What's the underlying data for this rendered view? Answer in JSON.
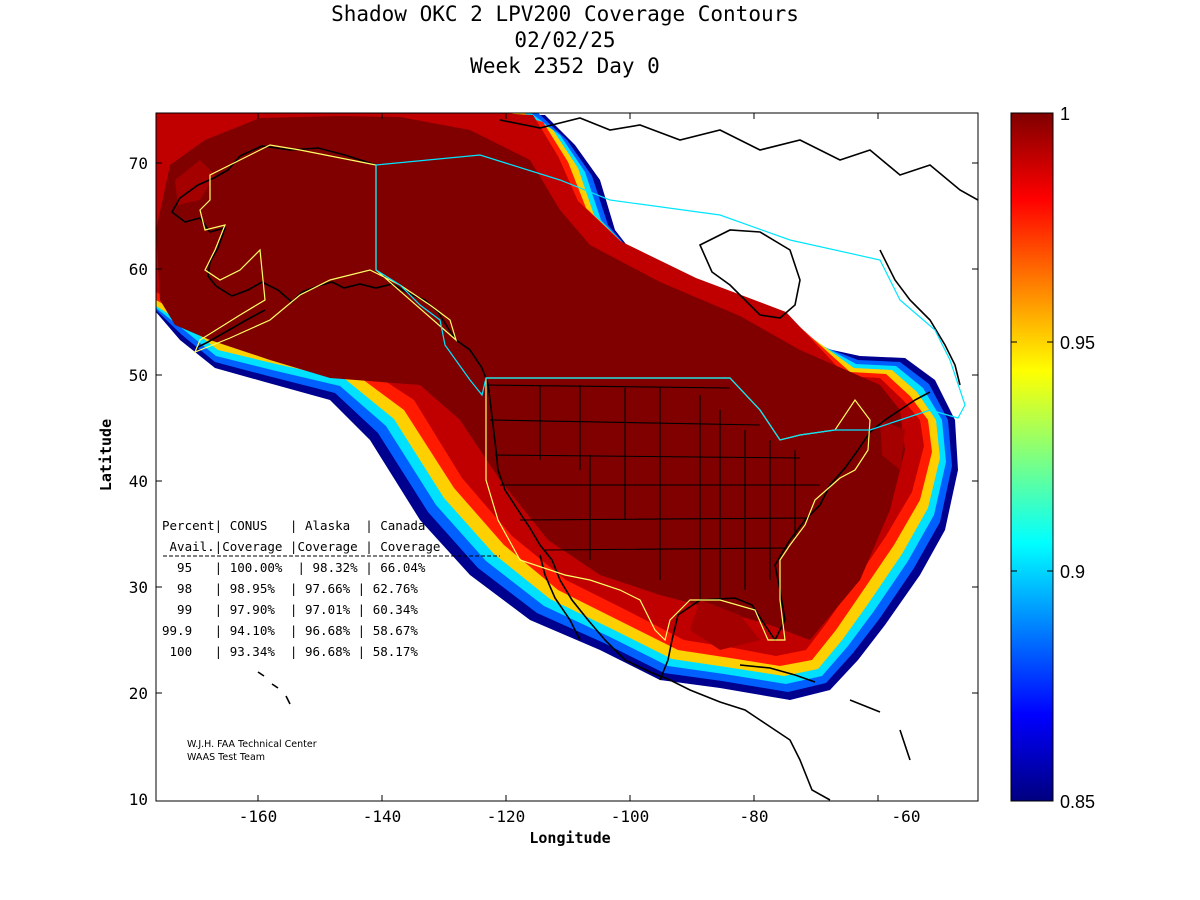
{
  "title": {
    "line1": "Shadow OKC 2 LPV200 Coverage Contours",
    "line2": "02/02/25",
    "line3": "Week 2352 Day 0"
  },
  "axes": {
    "xlabel": "Longitude",
    "ylabel": "Latitude",
    "x_ticks": [
      "-160",
      "-140",
      "-120",
      "-100",
      "-80",
      "-60"
    ],
    "y_ticks": [
      "70",
      "60",
      "50",
      "40",
      "30",
      "20",
      "10"
    ],
    "x_range": [
      -175,
      -50
    ],
    "y_range": [
      10,
      75
    ]
  },
  "colorbar": {
    "ticks": [
      "1",
      "0.95",
      "0.9",
      "0.85"
    ],
    "range": [
      0.85,
      1
    ],
    "colormap": "jet"
  },
  "table": {
    "header1": "Percent| CONUS   | Alaska  | Canada",
    "header2": " Avail.|Coverage |Coverage | Coverage",
    "rows": [
      "  95   | 100.00%  | 98.32% | 66.04%",
      "  98   | 98.95%  | 97.66% | 62.76%",
      "  99   | 97.90%  | 97.01% | 60.34%",
      "99.9   | 94.10%  | 96.68% | 58.67%",
      " 100   | 93.34%  | 96.68% | 58.17%"
    ]
  },
  "credit": {
    "line1": "W.J.H. FAA Technical Center",
    "line2": "WAAS Test Team"
  },
  "colors": {
    "coverage_core": "#800000",
    "region_outline_us": "#ffff66",
    "region_outline_canada": "#00e5ff",
    "land": "#000000"
  }
}
